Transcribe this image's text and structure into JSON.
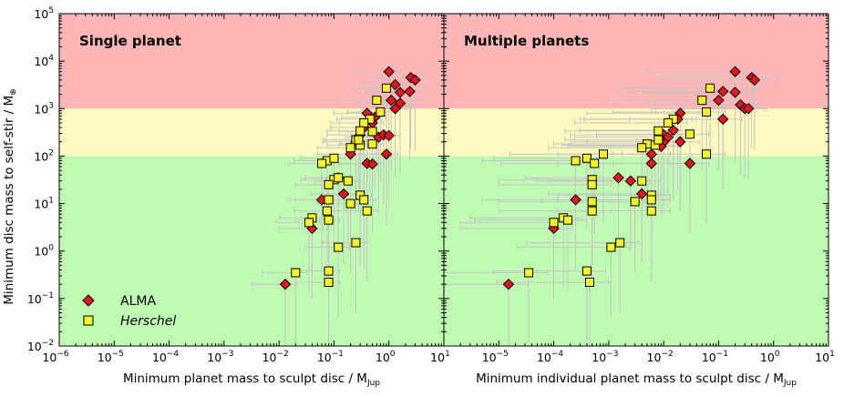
{
  "figure": {
    "ylabel_main": "Minimum disc mass to self-stir / M",
    "ylabel_sub": "⊕",
    "legend": [
      {
        "label": "ALMA",
        "italic": false,
        "marker": "diamond",
        "color": "#e8141c"
      },
      {
        "label": "Herschel",
        "italic": true,
        "marker": "square",
        "color": "#f5f52a"
      }
    ],
    "colors": {
      "zone_high": "#ffb6b6",
      "zone_mid": "#fffac0",
      "zone_low": "#c0fbb4",
      "errorbar": "#c4c4c4"
    }
  },
  "chart_data": [
    {
      "type": "scatter",
      "title": "Single planet",
      "xlabel_main": "Minimum planet mass to sculpt disc / M",
      "xlabel_sub": "Jup",
      "x_scale": "log",
      "y_scale": "log",
      "xlim": [
        1e-06,
        10
      ],
      "ylim": [
        0.01,
        100000
      ],
      "x_ticks": [
        {
          "label": "10",
          "exp": "−6"
        },
        {
          "label": "10",
          "exp": "−5"
        },
        {
          "label": "10",
          "exp": "−4"
        },
        {
          "label": "10",
          "exp": "−3"
        },
        {
          "label": "10",
          "exp": "−2"
        },
        {
          "label": "10",
          "exp": "−1"
        },
        {
          "label": "10",
          "exp": "0"
        },
        {
          "label": "10",
          "exp": "1"
        }
      ],
      "y_ticks": [
        {
          "label": "10",
          "exp": "−2"
        },
        {
          "label": "10",
          "exp": "−1"
        },
        {
          "label": "10",
          "exp": "0"
        },
        {
          "label": "10",
          "exp": "1"
        },
        {
          "label": "10",
          "exp": "2"
        },
        {
          "label": "10",
          "exp": "3"
        },
        {
          "label": "10",
          "exp": "4"
        },
        {
          "label": "10",
          "exp": "5"
        }
      ],
      "zones": [
        {
          "name": "high",
          "from": 1000,
          "to": 100000
        },
        {
          "name": "mid",
          "from": 100,
          "to": 1000
        },
        {
          "name": "low",
          "from": 0.01,
          "to": 100
        }
      ],
      "series": [
        {
          "name": "ALMA",
          "points": [
            {
              "x": 1.0,
              "y": 6000
            },
            {
              "x": 2.5,
              "y": 4500
            },
            {
              "x": 3.0,
              "y": 4000
            },
            {
              "x": 1.3,
              "y": 3200
            },
            {
              "x": 1.6,
              "y": 2200
            },
            {
              "x": 2.4,
              "y": 2300
            },
            {
              "x": 1.1,
              "y": 1500
            },
            {
              "x": 1.6,
              "y": 1300
            },
            {
              "x": 0.4,
              "y": 800
            },
            {
              "x": 0.55,
              "y": 650
            },
            {
              "x": 1.3,
              "y": 1000
            },
            {
              "x": 0.5,
              "y": 500
            },
            {
              "x": 0.35,
              "y": 400
            },
            {
              "x": 0.3,
              "y": 280
            },
            {
              "x": 0.25,
              "y": 200
            },
            {
              "x": 0.65,
              "y": 250
            },
            {
              "x": 0.8,
              "y": 280
            },
            {
              "x": 1.0,
              "y": 270
            },
            {
              "x": 0.2,
              "y": 110
            },
            {
              "x": 0.9,
              "y": 110
            },
            {
              "x": 0.4,
              "y": 70
            },
            {
              "x": 0.5,
              "y": 68
            },
            {
              "x": 0.15,
              "y": 16
            },
            {
              "x": 0.06,
              "y": 12
            },
            {
              "x": 0.04,
              "y": 3
            },
            {
              "x": 0.013,
              "y": 0.2
            },
            {
              "x": 0.12,
              "y": 35
            }
          ]
        },
        {
          "name": "Herschel",
          "points": [
            {
              "x": 0.9,
              "y": 2700
            },
            {
              "x": 0.6,
              "y": 1500
            },
            {
              "x": 0.45,
              "y": 600
            },
            {
              "x": 0.7,
              "y": 850
            },
            {
              "x": 0.35,
              "y": 500
            },
            {
              "x": 0.3,
              "y": 340
            },
            {
              "x": 0.5,
              "y": 330
            },
            {
              "x": 0.25,
              "y": 220
            },
            {
              "x": 0.2,
              "y": 150
            },
            {
              "x": 0.3,
              "y": 170
            },
            {
              "x": 0.5,
              "y": 180
            },
            {
              "x": 0.28,
              "y": 220
            },
            {
              "x": 0.075,
              "y": 80
            },
            {
              "x": 0.1,
              "y": 90
            },
            {
              "x": 0.06,
              "y": 70
            },
            {
              "x": 0.1,
              "y": 32
            },
            {
              "x": 0.18,
              "y": 30
            },
            {
              "x": 0.08,
              "y": 25
            },
            {
              "x": 0.12,
              "y": 35
            },
            {
              "x": 0.3,
              "y": 15
            },
            {
              "x": 0.35,
              "y": 12
            },
            {
              "x": 0.2,
              "y": 10
            },
            {
              "x": 0.08,
              "y": 12
            },
            {
              "x": 0.075,
              "y": 7
            },
            {
              "x": 0.4,
              "y": 7
            },
            {
              "x": 0.04,
              "y": 5
            },
            {
              "x": 0.035,
              "y": 4
            },
            {
              "x": 0.08,
              "y": 4.5
            },
            {
              "x": 0.12,
              "y": 1.2
            },
            {
              "x": 0.25,
              "y": 1.5
            },
            {
              "x": 0.02,
              "y": 0.35
            },
            {
              "x": 0.08,
              "y": 0.38
            },
            {
              "x": 0.08,
              "y": 0.22
            }
          ]
        }
      ]
    },
    {
      "type": "scatter",
      "title": "Multiple planets",
      "xlabel_main": "Minimum individual planet mass to sculpt disc / M",
      "xlabel_sub": "Jup",
      "x_scale": "log",
      "y_scale": "log",
      "xlim": [
        1e-06,
        10
      ],
      "ylim": [
        0.01,
        100000
      ],
      "x_ticks": [
        {
          "label": "10",
          "exp": "−5"
        },
        {
          "label": "10",
          "exp": "−4"
        },
        {
          "label": "10",
          "exp": "−3"
        },
        {
          "label": "10",
          "exp": "−2"
        },
        {
          "label": "10",
          "exp": "−1"
        },
        {
          "label": "10",
          "exp": "0"
        },
        {
          "label": "10",
          "exp": "1"
        }
      ],
      "zones": [
        {
          "name": "high",
          "from": 1000,
          "to": 100000
        },
        {
          "name": "mid",
          "from": 100,
          "to": 1000
        },
        {
          "name": "low",
          "from": 0.01,
          "to": 100
        }
      ],
      "series": [
        {
          "name": "ALMA",
          "points": [
            {
              "x": 0.2,
              "y": 6000
            },
            {
              "x": 0.4,
              "y": 4500
            },
            {
              "x": 0.45,
              "y": 4000
            },
            {
              "x": 0.2,
              "y": 2200
            },
            {
              "x": 0.12,
              "y": 2300
            },
            {
              "x": 0.1,
              "y": 1500
            },
            {
              "x": 0.25,
              "y": 1200
            },
            {
              "x": 0.3,
              "y": 1000
            },
            {
              "x": 0.35,
              "y": 1000
            },
            {
              "x": 0.12,
              "y": 600
            },
            {
              "x": 0.02,
              "y": 800
            },
            {
              "x": 0.018,
              "y": 600
            },
            {
              "x": 0.015,
              "y": 350
            },
            {
              "x": 0.02,
              "y": 200
            },
            {
              "x": 0.01,
              "y": 200
            },
            {
              "x": 0.01,
              "y": 280
            },
            {
              "x": 0.012,
              "y": 250
            },
            {
              "x": 0.009,
              "y": 160
            },
            {
              "x": 0.006,
              "y": 110
            },
            {
              "x": 0.006,
              "y": 70
            },
            {
              "x": 0.03,
              "y": 70
            },
            {
              "x": 0.004,
              "y": 16
            },
            {
              "x": 0.0015,
              "y": 35
            },
            {
              "x": 0.0025,
              "y": 30
            },
            {
              "x": 0.00025,
              "y": 12
            },
            {
              "x": 0.0001,
              "y": 3
            },
            {
              "x": 1.5e-05,
              "y": 0.2
            }
          ]
        },
        {
          "name": "Herschel",
          "points": [
            {
              "x": 0.07,
              "y": 2700
            },
            {
              "x": 0.05,
              "y": 1500
            },
            {
              "x": 0.015,
              "y": 600
            },
            {
              "x": 0.06,
              "y": 850
            },
            {
              "x": 0.012,
              "y": 500
            },
            {
              "x": 0.008,
              "y": 340
            },
            {
              "x": 0.03,
              "y": 290
            },
            {
              "x": 0.005,
              "y": 180
            },
            {
              "x": 0.004,
              "y": 150
            },
            {
              "x": 0.007,
              "y": 170
            },
            {
              "x": 0.06,
              "y": 110
            },
            {
              "x": 0.008,
              "y": 220
            },
            {
              "x": 0.00025,
              "y": 80
            },
            {
              "x": 0.0004,
              "y": 90
            },
            {
              "x": 0.0008,
              "y": 110
            },
            {
              "x": 0.00055,
              "y": 70
            },
            {
              "x": 0.0005,
              "y": 32
            },
            {
              "x": 0.004,
              "y": 30
            },
            {
              "x": 0.0005,
              "y": 25
            },
            {
              "x": 0.006,
              "y": 15
            },
            {
              "x": 0.006,
              "y": 12
            },
            {
              "x": 0.003,
              "y": 11
            },
            {
              "x": 0.0005,
              "y": 11
            },
            {
              "x": 0.0005,
              "y": 7
            },
            {
              "x": 0.006,
              "y": 7
            },
            {
              "x": 0.00015,
              "y": 5
            },
            {
              "x": 0.0001,
              "y": 4
            },
            {
              "x": 0.00018,
              "y": 4.5
            },
            {
              "x": 0.0011,
              "y": 1.2
            },
            {
              "x": 0.0016,
              "y": 1.5
            },
            {
              "x": 3.5e-05,
              "y": 0.35
            },
            {
              "x": 0.0004,
              "y": 0.38
            },
            {
              "x": 0.00045,
              "y": 0.22
            }
          ]
        }
      ]
    }
  ]
}
